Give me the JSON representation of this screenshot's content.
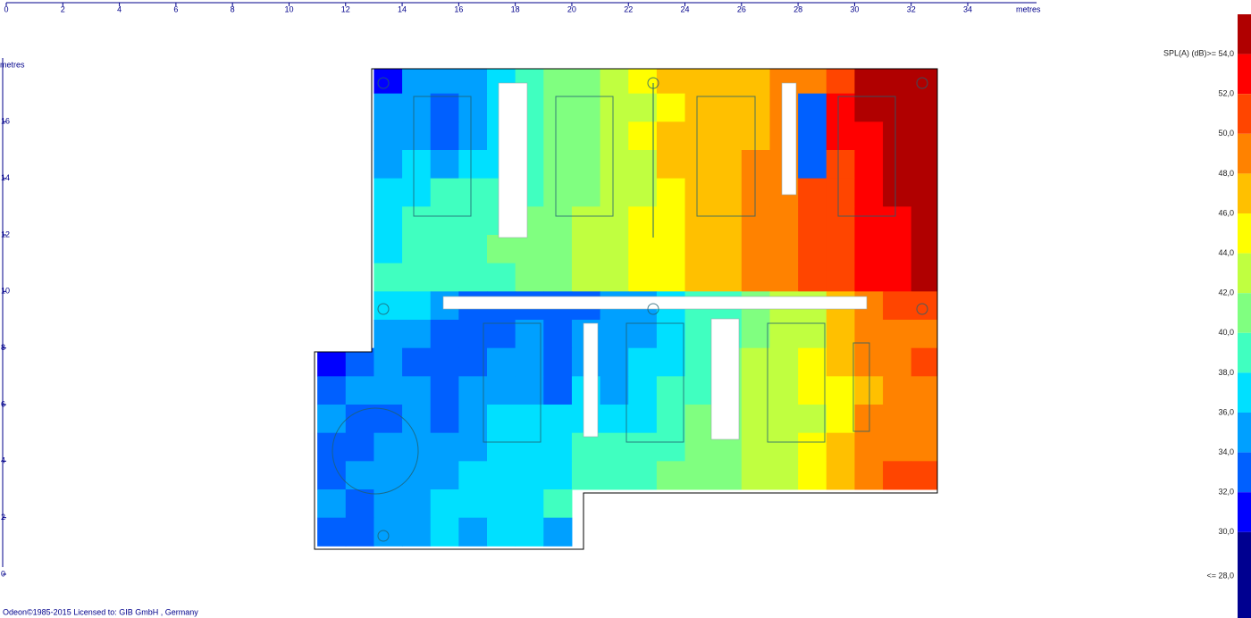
{
  "chart_data": {
    "type": "heatmap",
    "xlabel": "metres",
    "ylabel": "metres",
    "xlim": [
      0,
      34
    ],
    "ylim": [
      0,
      18
    ],
    "xticks": [
      0,
      2,
      4,
      6,
      8,
      10,
      12,
      14,
      16,
      18,
      20,
      22,
      24,
      26,
      28,
      30,
      32,
      34
    ],
    "yticks": [
      0,
      2,
      4,
      6,
      8,
      10,
      12,
      14,
      16
    ],
    "x": [
      11,
      12,
      13,
      14,
      15,
      16,
      17,
      18,
      19,
      20,
      21,
      22,
      23,
      24,
      25,
      26,
      27,
      28,
      29,
      30,
      31,
      32
    ],
    "y": [
      17,
      16,
      15,
      14,
      13,
      12,
      11,
      10,
      9,
      8,
      7,
      6,
      5,
      4,
      3,
      2,
      1
    ],
    "z": [
      [
        null,
        null,
        30,
        33,
        34,
        34,
        36,
        38,
        39,
        40,
        41,
        43,
        45,
        45,
        46,
        46,
        47,
        48,
        50,
        53,
        53,
        54
      ],
      [
        null,
        null,
        33,
        33,
        31,
        33,
        35,
        38,
        39,
        40,
        41,
        42,
        44,
        45,
        46,
        46,
        47,
        31,
        51,
        53,
        53,
        54
      ],
      [
        null,
        null,
        33,
        34,
        31,
        34,
        36,
        38,
        39,
        40,
        41,
        43,
        45,
        45,
        46,
        46,
        47,
        31,
        51,
        52,
        53,
        54
      ],
      [
        null,
        null,
        34,
        35,
        34,
        35,
        36,
        38,
        39,
        40,
        41,
        42,
        45,
        45,
        46,
        47,
        48,
        31,
        50,
        52,
        53,
        54
      ],
      [
        null,
        null,
        35,
        36,
        37,
        37,
        37,
        38,
        39,
        40,
        41,
        42,
        44,
        45,
        45,
        47,
        48,
        49,
        50,
        51,
        53,
        53
      ],
      [
        null,
        null,
        36,
        37,
        37,
        37,
        38,
        39,
        40,
        41,
        41,
        43,
        44,
        45,
        46,
        47,
        48,
        49,
        50,
        52,
        52,
        53
      ],
      [
        null,
        null,
        36,
        37,
        38,
        38,
        39,
        40,
        40,
        41,
        41,
        43,
        44,
        45,
        46,
        47,
        48,
        49,
        50,
        51,
        52,
        53
      ],
      [
        null,
        null,
        37,
        37,
        37,
        38,
        38,
        39,
        40,
        41,
        42,
        43,
        44,
        45,
        46,
        47,
        48,
        49,
        50,
        51,
        52,
        53
      ],
      [
        null,
        null,
        35,
        35,
        33,
        32,
        32,
        31,
        31,
        31,
        33,
        34,
        35,
        37,
        38,
        40,
        41,
        42,
        46,
        48,
        49,
        49
      ],
      [
        null,
        null,
        34,
        33,
        32,
        31,
        32,
        33,
        31,
        33,
        33,
        34,
        36,
        37,
        38,
        40,
        41,
        42,
        45,
        47,
        48,
        48
      ],
      [
        30,
        31,
        33,
        32,
        31,
        32,
        33,
        34,
        31,
        34,
        33,
        35,
        36,
        37,
        39,
        41,
        42,
        43,
        45,
        47,
        48,
        49
      ],
      [
        32,
        34,
        33,
        33,
        31,
        33,
        33,
        34,
        31,
        35,
        34,
        35,
        37,
        38,
        40,
        41,
        42,
        43,
        44,
        46,
        48,
        47
      ],
      [
        33,
        32,
        31,
        33,
        32,
        34,
        35,
        35,
        36,
        36,
        35,
        36,
        37,
        39,
        40,
        41,
        42,
        42,
        44,
        47,
        48,
        48
      ],
      [
        31,
        32,
        34,
        33,
        34,
        34,
        36,
        36,
        36,
        37,
        37,
        37,
        38,
        39,
        40,
        41,
        42,
        43,
        45,
        48,
        48,
        48
      ],
      [
        32,
        33,
        33,
        34,
        34,
        35,
        36,
        36,
        36,
        37,
        37,
        38,
        39,
        40,
        40,
        41,
        42,
        43,
        46,
        48,
        49,
        49
      ],
      [
        33,
        32,
        33,
        34,
        35,
        35,
        35,
        36,
        37,
        null,
        null,
        null,
        null,
        null,
        null,
        null,
        null,
        null,
        null,
        null,
        null,
        null
      ],
      [
        32,
        31,
        33,
        34,
        36,
        34,
        35,
        35,
        34,
        null,
        null,
        null,
        null,
        null,
        null,
        null,
        null,
        null,
        null,
        null,
        null,
        null
      ]
    ],
    "colorbar": {
      "title": "SPL(A) (dB)",
      "ticks": [
        {
          "value": 54,
          "label": ">= 54,0"
        },
        {
          "value": 52,
          "label": "52,0"
        },
        {
          "value": 50,
          "label": "50,0"
        },
        {
          "value": 48,
          "label": "48,0"
        },
        {
          "value": 46,
          "label": "46,0"
        },
        {
          "value": 44,
          "label": "44,0"
        },
        {
          "value": 42,
          "label": "42,0"
        },
        {
          "value": 40,
          "label": "40,0"
        },
        {
          "value": 38,
          "label": "38,0"
        },
        {
          "value": 36,
          "label": "36,0"
        },
        {
          "value": 34,
          "label": "34,0"
        },
        {
          "value": 32,
          "label": "32,0"
        },
        {
          "value": 30,
          "label": "30,0"
        },
        {
          "value": 28,
          "label": "<= 28,0"
        }
      ],
      "colors": [
        "#b00000",
        "#ff0000",
        "#ff4500",
        "#ff8200",
        "#ffc000",
        "#ffff00",
        "#c0ff40",
        "#80ff80",
        "#40ffc0",
        "#00e0ff",
        "#00a0ff",
        "#0060ff",
        "#0000ff",
        "#000090"
      ]
    }
  },
  "footer": "Odeon©1985-2015   Licensed to: GIB GmbH , Germany"
}
